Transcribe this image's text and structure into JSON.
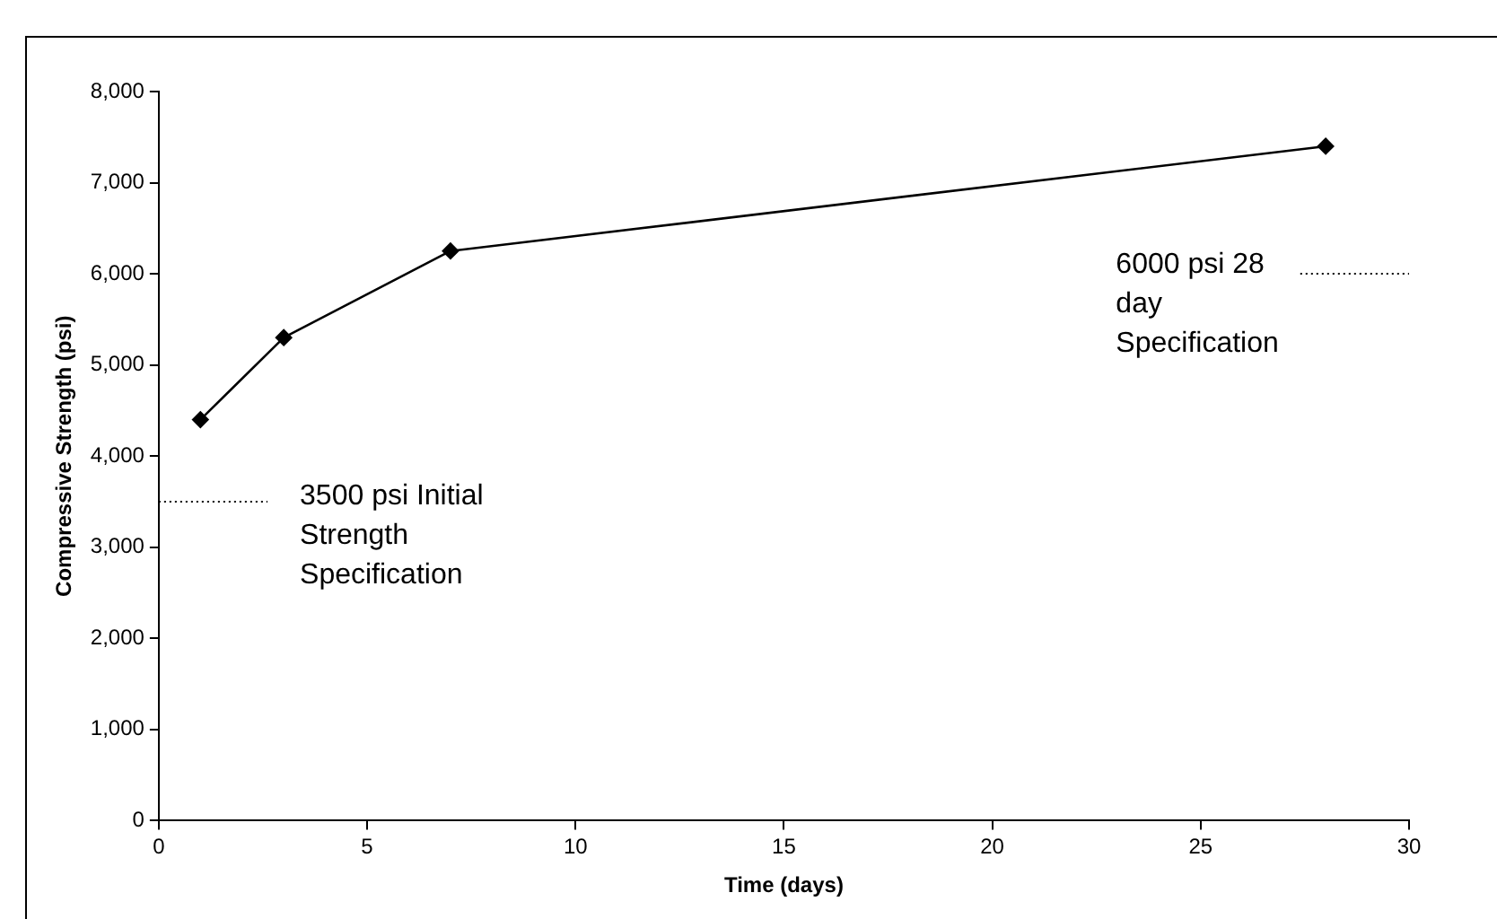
{
  "chart_data": {
    "type": "line",
    "xlabel": "Time (days)",
    "ylabel": "Compressive Strength (psi)",
    "x": [
      1,
      3,
      7,
      28
    ],
    "series": [
      {
        "color": "#000000",
        "values": [
          4400,
          5300,
          6250,
          7400
        ]
      }
    ],
    "xlim": [
      0,
      30
    ],
    "xticks": [
      0,
      5,
      10,
      15,
      20,
      25,
      30
    ],
    "ylim": [
      0,
      8000
    ],
    "yticks": [
      {
        "value": 0,
        "label": "0"
      },
      {
        "value": 1000,
        "label": "1,000"
      },
      {
        "value": 2000,
        "label": "2,000"
      },
      {
        "value": 3000,
        "label": "3,000"
      },
      {
        "value": 4000,
        "label": "4,000"
      },
      {
        "value": 5000,
        "label": "5,000"
      },
      {
        "value": 6000,
        "label": "6,000"
      },
      {
        "value": 7000,
        "label": "7,000"
      },
      {
        "value": 8000,
        "label": "8,000"
      }
    ],
    "ref_lines": [
      {
        "axis": "y",
        "value": 3500,
        "label": "3500 psi Initial\nStrength\nSpecification",
        "color": "#000000",
        "line_style": "dotted"
      },
      {
        "axis": "y",
        "value": 6000,
        "label": "6000 psi 28\nday\nSpecification",
        "color": "#000000",
        "line_style": "dotted"
      }
    ],
    "grid": false,
    "legend": false,
    "marker": "diamond",
    "line_style": "solid"
  }
}
